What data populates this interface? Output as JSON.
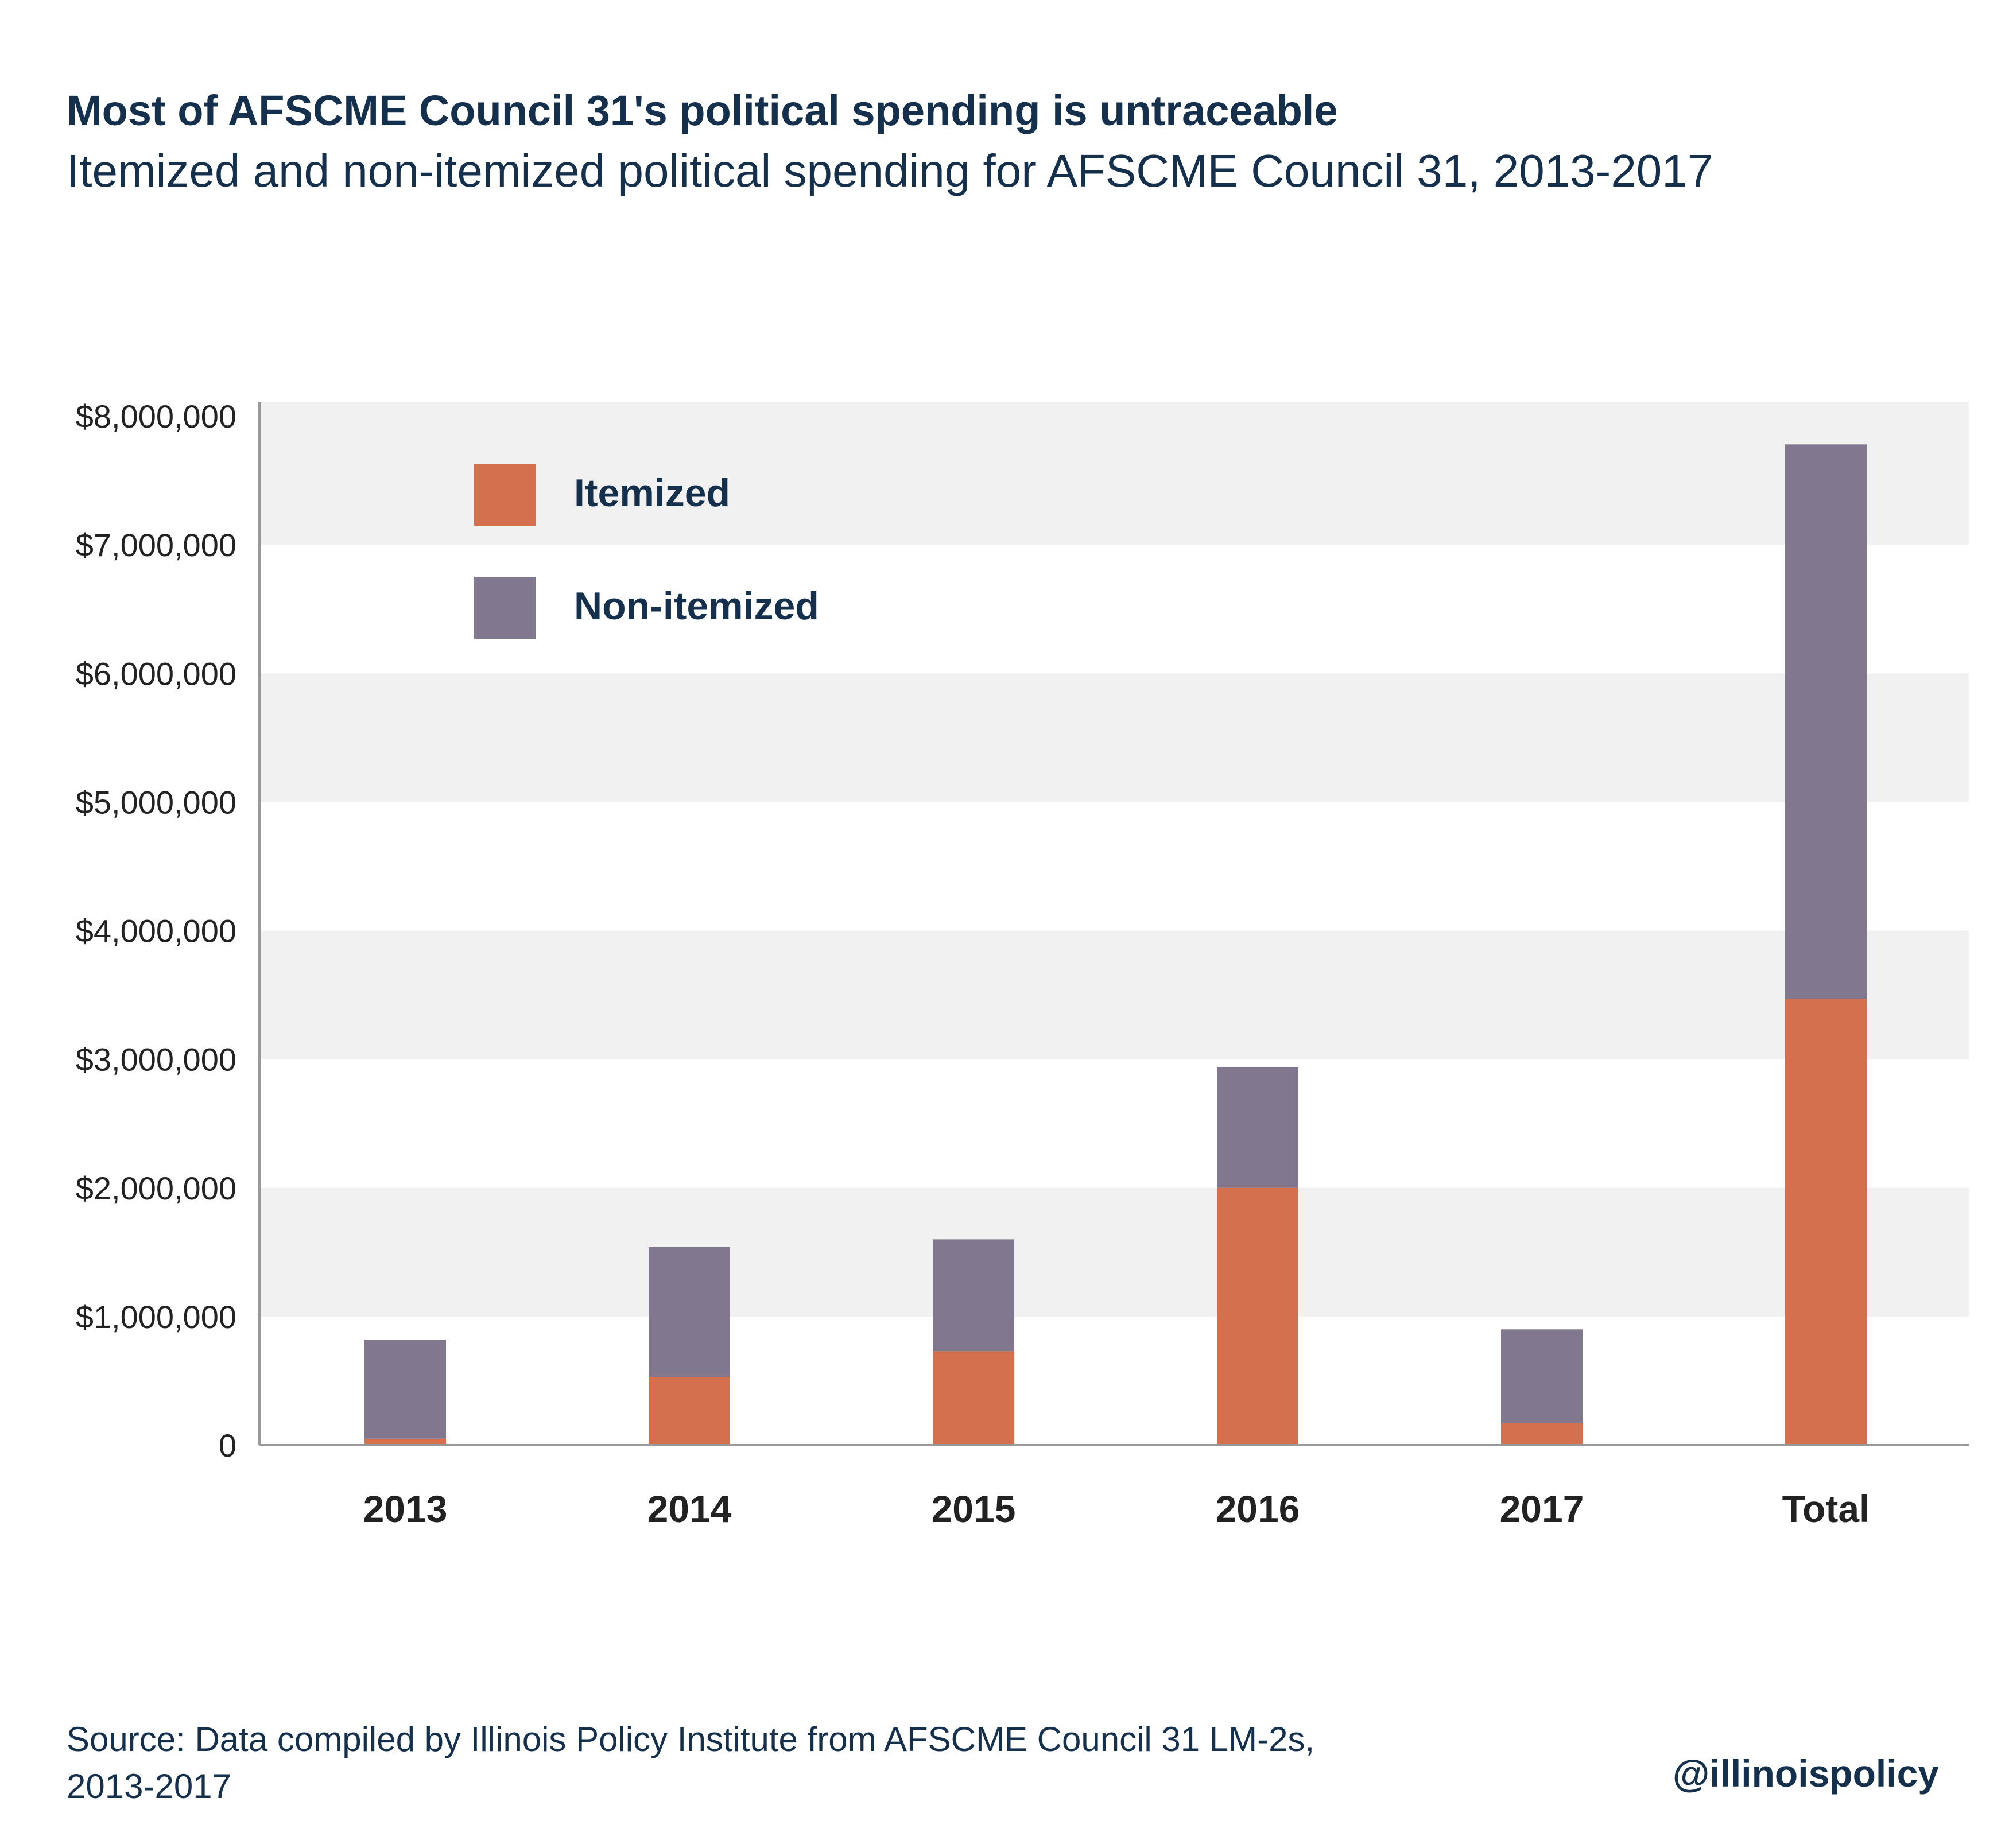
{
  "title": "Most of AFSCME Council 31's political spending is untraceable",
  "subtitle": "Itemized and non-itemized political spending for AFSCME Council 31, 2013-2017",
  "source": {
    "line1": "Source:  Data compiled by Illinois Policy Institute from AFSCME Council 31 LM-2s,",
    "line2": "2013-2017"
  },
  "handle": "@illinoispolicy",
  "chart_data": {
    "type": "bar",
    "stacked": true,
    "categories": [
      "2013",
      "2014",
      "2015",
      "2016",
      "2017",
      "Total"
    ],
    "series": [
      {
        "name": "Itemized",
        "color": "#d4704e",
        "values": [
          50000,
          530000,
          730000,
          2000000,
          170000,
          3470000
        ]
      },
      {
        "name": "Non-itemized",
        "color": "#81778e",
        "values": [
          770000,
          1010000,
          870000,
          940000,
          730000,
          4310000
        ]
      }
    ],
    "ylim": [
      0,
      8000000
    ],
    "yticks": [
      0,
      1000000,
      2000000,
      3000000,
      4000000,
      5000000,
      6000000,
      7000000,
      8000000
    ],
    "ytick_labels": [
      "0",
      "$1,000,000",
      "$2,000,000",
      "$3,000,000",
      "$4,000,000",
      "$5,000,000",
      "$6,000,000",
      "$7,000,000",
      "$8,000,000"
    ],
    "xlabel": "",
    "ylabel": "",
    "legend_position": "top-left",
    "banded_background": true,
    "band_color": "#f1f1f1",
    "text_color": "#15304d",
    "axis_color": "#999999"
  }
}
